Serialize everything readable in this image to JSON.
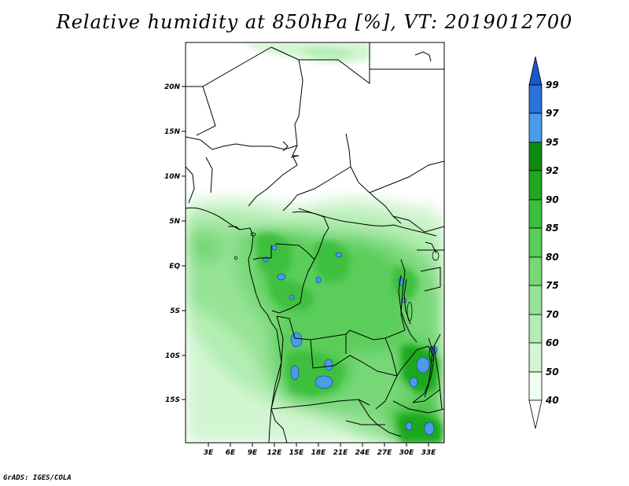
{
  "title": "Relative humidity at 850hPa [%], VT: 2019012700",
  "credit": "GrADS: IGES/COLA",
  "colors": {
    "bands": [
      "#f0fff0",
      "#d2f5d2",
      "#b4edb4",
      "#96e396",
      "#78d878",
      "#5acd5a",
      "#3cc03c",
      "#1fa81f",
      "#108a10",
      "#4a9be8",
      "#2a73d8",
      "#1a57c8"
    ]
  },
  "map": {
    "lat_labels": [
      "20N",
      "15N",
      "10N",
      "5N",
      "EQ",
      "5S",
      "10S",
      "15S"
    ],
    "lon_labels": [
      "3E",
      "6E",
      "9E",
      "12E",
      "15E",
      "18E",
      "21E",
      "24E",
      "27E",
      "30E",
      "33E"
    ]
  },
  "colorbar": {
    "labels": [
      "99",
      "97",
      "95",
      "92",
      "90",
      "85",
      "80",
      "75",
      "70",
      "60",
      "50",
      "40"
    ]
  }
}
